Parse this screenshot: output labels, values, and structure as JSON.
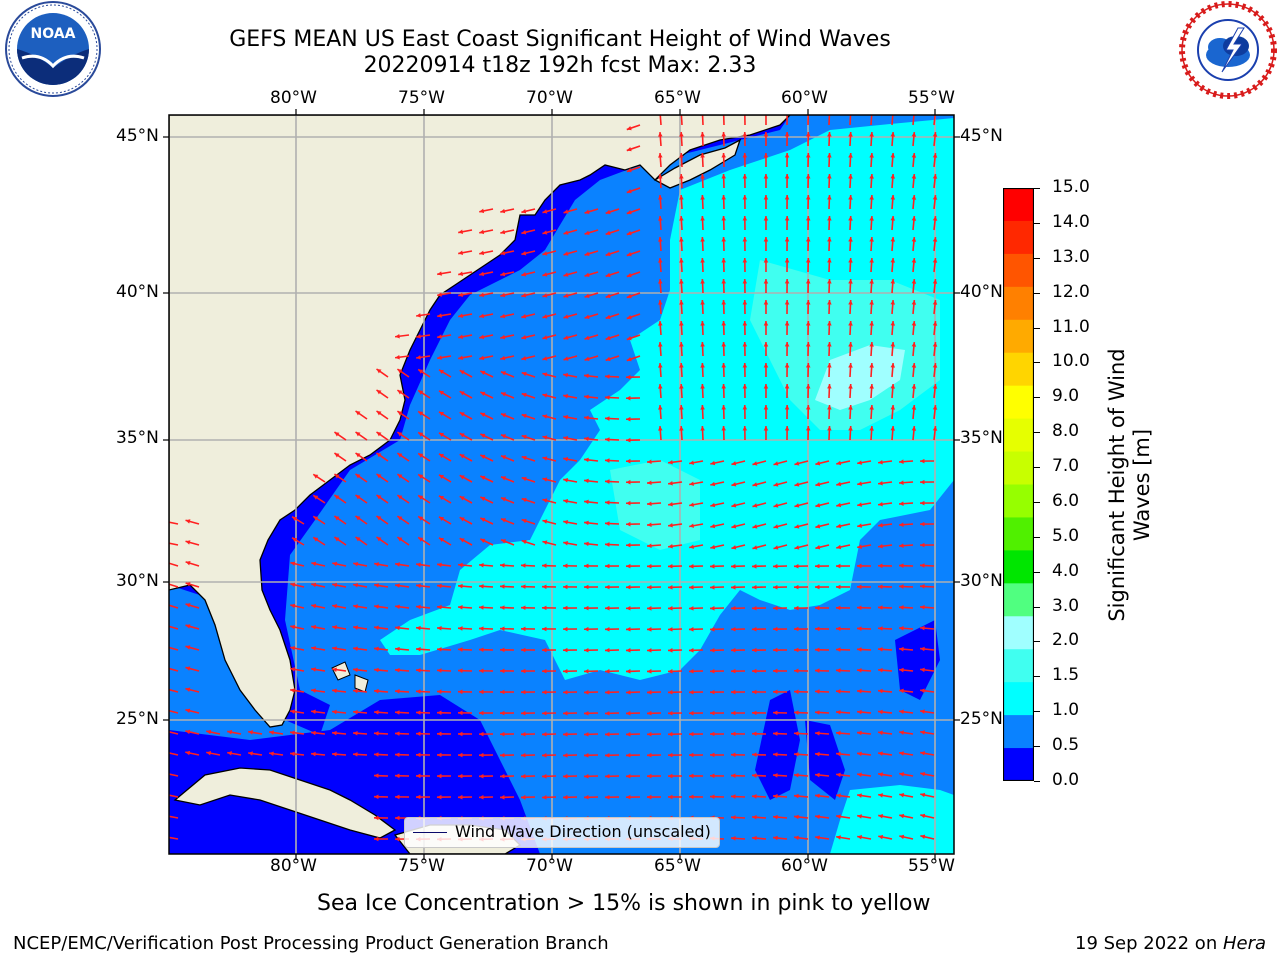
{
  "title": {
    "line1": "GEFS MEAN US East Coast Significant Height of Wind Waves",
    "line2": "20220914 t18z 192h fcst   Max: 2.33"
  },
  "logos": {
    "noaa": {
      "text": "NOAA",
      "ring_text": "NATIONAL OCEANIC AND ATMOSPHERIC ADMINISTRATION · U.S. DEPARTMENT OF COMMERCE"
    },
    "nws": {
      "ring_text": "NATIONAL WEATHER SERVICE"
    }
  },
  "map": {
    "lon_labels": [
      "80°W",
      "75°W",
      "70°W",
      "65°W",
      "60°W",
      "55°W"
    ],
    "lat_labels": [
      "45°N",
      "40°N",
      "35°N",
      "30°N",
      "25°N"
    ],
    "lon_range": [
      -85,
      -54.3
    ],
    "lat_range": [
      20.3,
      46.0
    ],
    "grid": true,
    "colors": {
      "land": "#efeedc",
      "bin_0_0.5": "#0000ff",
      "bin_0.5_1": "#0a82ff",
      "bin_1_1.5": "#00ffff",
      "bin_1.5_2": "#40fff0",
      "bin_2_3": "#a0ffff",
      "arrow": "#ff2020",
      "grid": "#b0b0b0"
    }
  },
  "legend": {
    "label": "Wind Wave Direction (unscaled)"
  },
  "colorbar": {
    "label_line1": "Significant Height of Wind",
    "label_line2": "Waves [m]",
    "ticks": [
      "15.0",
      "14.0",
      "13.0",
      "12.0",
      "11.0",
      "10.0",
      "9.0",
      "8.0",
      "7.0",
      "6.0",
      "5.0",
      "4.0",
      "3.0",
      "2.0",
      "1.5",
      "1.0",
      "0.5",
      "0.0"
    ],
    "colors_top_to_bottom": [
      "#ff0000",
      "#ff2800",
      "#ff5500",
      "#ff8000",
      "#ffaa00",
      "#ffd500",
      "#ffff00",
      "#e6ff00",
      "#c8ff00",
      "#96ff00",
      "#50f000",
      "#00e600",
      "#50ff80",
      "#a0ffff",
      "#40fff0",
      "#00ffff",
      "#0a82ff",
      "#0000ff"
    ]
  },
  "subtitle": "Sea Ice Concentration > 15% is shown in pink to yellow",
  "footer": {
    "left": "NCEP/EMC/Verification Post Processing Product Generation Branch",
    "right_date": "19 Sep 2022 on ",
    "right_host": "Hera"
  }
}
